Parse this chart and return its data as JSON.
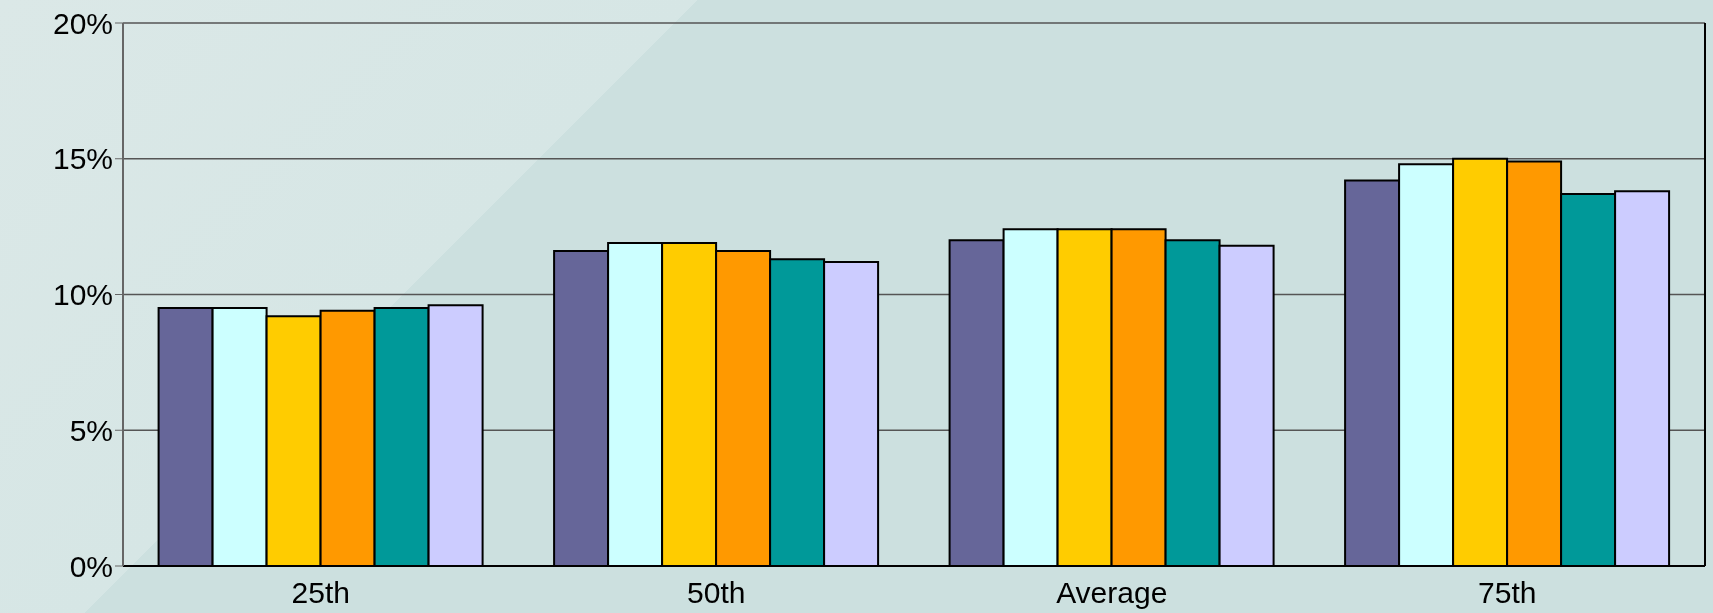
{
  "chart_data": {
    "type": "bar",
    "categories": [
      "25th",
      "50th",
      "Average",
      "75th"
    ],
    "series": [
      {
        "color": "#666699",
        "values": [
          9.5,
          11.6,
          12.0,
          14.2
        ]
      },
      {
        "color": "#ccffff",
        "values": [
          9.5,
          11.9,
          12.4,
          14.8
        ]
      },
      {
        "color": "#ffcc00",
        "values": [
          9.2,
          11.9,
          12.4,
          15.0
        ]
      },
      {
        "color": "#ff9900",
        "values": [
          9.4,
          11.6,
          12.4,
          14.9
        ]
      },
      {
        "color": "#009999",
        "values": [
          9.5,
          11.3,
          12.0,
          13.7
        ]
      },
      {
        "color": "#ccccff",
        "values": [
          9.6,
          11.2,
          11.8,
          13.8
        ]
      }
    ],
    "ylim": [
      0,
      20
    ],
    "yticks": [
      {
        "value": 0,
        "label": "0%"
      },
      {
        "value": 5,
        "label": "5%"
      },
      {
        "value": 10,
        "label": "10%"
      },
      {
        "value": 15,
        "label": "15%"
      },
      {
        "value": 20,
        "label": "20%"
      }
    ],
    "grid": "y",
    "legend": false
  }
}
